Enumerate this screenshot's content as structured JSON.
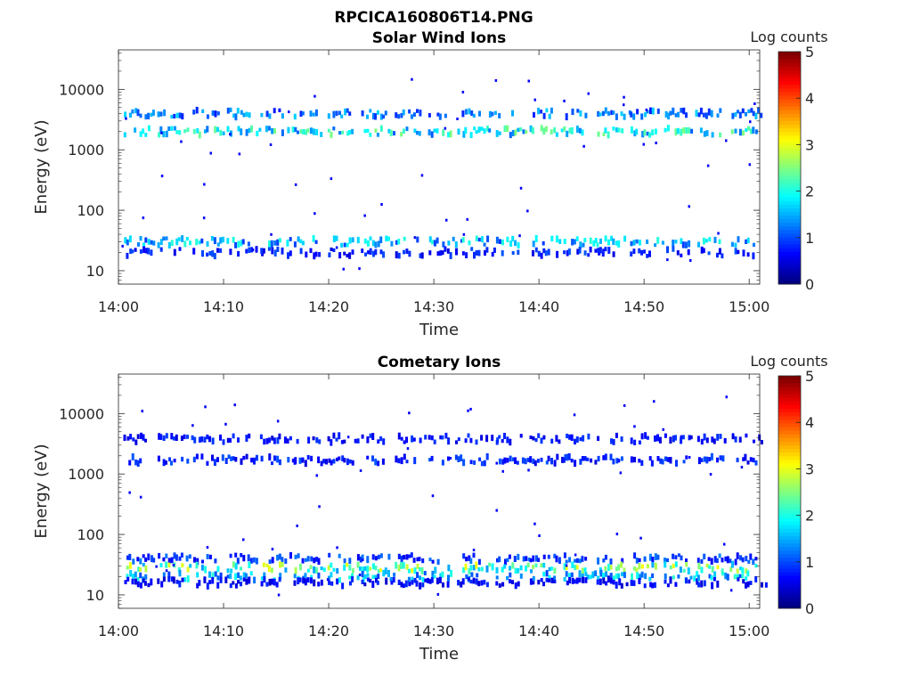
{
  "figure_title": "RPCICA160806T14.PNG",
  "colorbar": {
    "label": "Log counts",
    "ticks": [
      "0",
      "1",
      "2",
      "3",
      "4",
      "5"
    ],
    "range": [
      0,
      5
    ],
    "colormap": "jet"
  },
  "chart_data": [
    {
      "type": "heatmap",
      "title": "Solar Wind Ions",
      "xlabel": "Time",
      "ylabel": "Energy (eV)",
      "xticks": [
        "14:00",
        "14:10",
        "14:20",
        "14:30",
        "14:40",
        "14:50",
        "15:00"
      ],
      "xlim_minutes": [
        0,
        61
      ],
      "yticks": [
        "10",
        "100",
        "1000",
        "10000"
      ],
      "ylim": [
        6,
        45000
      ],
      "yscale": "log",
      "bursts_minutes": [
        1.7,
        4.9,
        8.3,
        11.5,
        14.7,
        17.9,
        21.1,
        24.3,
        27.5,
        30.7,
        33.9,
        37.1,
        40.3,
        43.5,
        46.7,
        49.9,
        53.1,
        56.3,
        59.5
      ],
      "bands": [
        {
          "energy_ev": 4000,
          "log_counts_peak": 1.6
        },
        {
          "energy_ev": 2000,
          "log_counts_peak": 2.4
        },
        {
          "energy_ev": 30,
          "log_counts_peak": 2.0
        },
        {
          "energy_ev": 20,
          "log_counts_peak": 1.0
        }
      ]
    },
    {
      "type": "heatmap",
      "title": "Cometary Ions",
      "xlabel": "Time",
      "ylabel": "Energy (eV)",
      "xticks": [
        "14:00",
        "14:10",
        "14:20",
        "14:30",
        "14:40",
        "14:50",
        "15:00"
      ],
      "xlim_minutes": [
        0,
        61
      ],
      "yticks": [
        "10",
        "100",
        "1000",
        "10000"
      ],
      "ylim": [
        6,
        45000
      ],
      "yscale": "log",
      "bursts_minutes": [
        1.7,
        4.9,
        8.3,
        11.5,
        14.7,
        17.9,
        21.1,
        24.3,
        27.5,
        30.7,
        33.9,
        37.1,
        40.3,
        43.5,
        46.7,
        49.9,
        53.1,
        56.3,
        59.5
      ],
      "bands": [
        {
          "energy_ev": 3800,
          "log_counts_peak": 0.9
        },
        {
          "energy_ev": 1700,
          "log_counts_peak": 1.0
        },
        {
          "energy_ev": 40,
          "log_counts_peak": 1.2
        },
        {
          "energy_ev": 28,
          "log_counts_peak": 3.0
        },
        {
          "energy_ev": 20,
          "log_counts_peak": 2.0
        },
        {
          "energy_ev": 16,
          "log_counts_peak": 0.8
        }
      ]
    }
  ]
}
